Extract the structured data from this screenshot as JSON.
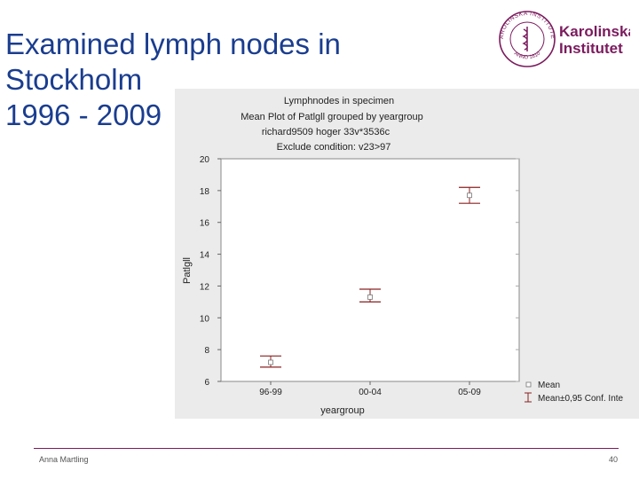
{
  "slide": {
    "title_lines": [
      "Examined lymph nodes in",
      "Stockholm",
      "1996 - 2009"
    ],
    "author": "Anna Martling",
    "page_number": "40",
    "accent_color": "#7b1b5e",
    "title_color": "#1a3d8f"
  },
  "logo": {
    "name_line1": "Karolinska",
    "name_line2": "Institutet",
    "seal_text": "KAROLINSKA INSTITUTET",
    "seal_year": "ANNO 1810",
    "color": "#7b1b5e"
  },
  "chart_data": {
    "type": "scatter",
    "title_lines": [
      "Lymphnodes in specimen",
      "Mean Plot of Patlgll grouped by  yeargroup",
      "richard9509 hoger 33v*3536c",
      "Exclude condition: v23>97"
    ],
    "xlabel": "yeargroup",
    "ylabel": "Patlgll",
    "categories": [
      "96-99",
      "00-04",
      "05-09"
    ],
    "ylim": [
      6,
      20
    ],
    "yticks": [
      6,
      8,
      10,
      12,
      14,
      16,
      18,
      20
    ],
    "series": [
      {
        "name": "Mean",
        "values": [
          7.2,
          11.3,
          17.7
        ],
        "ci_low": [
          6.9,
          11.0,
          17.2
        ],
        "ci_high": [
          7.6,
          11.8,
          18.2
        ]
      }
    ],
    "legend": [
      "Mean",
      "Mean±0,95 Conf. Inte"
    ],
    "legend_position": "bottom-right",
    "grid": false,
    "errorbar_color": "#8b2020"
  }
}
